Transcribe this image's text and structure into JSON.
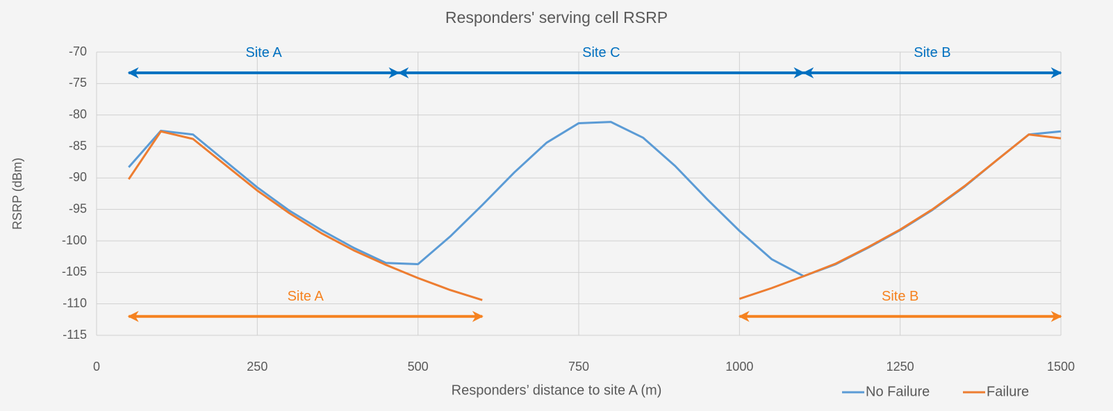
{
  "chart_data": {
    "type": "line",
    "title": "Responders' serving cell RSRP",
    "x_label": "Responders’ distance to site A (m)",
    "y_label": "RSRP (dBm)",
    "x": [
      50,
      100,
      150,
      200,
      250,
      300,
      350,
      400,
      450,
      500,
      550,
      600,
      650,
      700,
      750,
      800,
      850,
      900,
      950,
      1000,
      1050,
      1100,
      1150,
      1200,
      1250,
      1300,
      1350,
      1400,
      1450,
      1500
    ],
    "series": [
      {
        "name": "No Failure",
        "color": "#5b9bd5",
        "values": [
          -88.3,
          -82.5,
          -83.1,
          -87.3,
          -91.5,
          -95.2,
          -98.3,
          -101.1,
          -103.5,
          -103.7,
          -99.3,
          -94.3,
          -89.1,
          -84.4,
          -81.3,
          -81.1,
          -83.6,
          -88.1,
          -93.4,
          -98.4,
          -102.9,
          -105.6,
          -103.7,
          -101.1,
          -98.3,
          -95.1,
          -91.4,
          -87.2,
          -83.1,
          -82.6
        ]
      },
      {
        "name": "Failure",
        "color": "#ed7d31",
        "values": [
          -90.2,
          -82.6,
          -83.8,
          -87.9,
          -92.0,
          -95.6,
          -98.8,
          -101.5,
          -103.8,
          -105.9,
          -107.8,
          -109.4,
          null,
          null,
          null,
          null,
          null,
          null,
          null,
          -109.2,
          -107.5,
          -105.6,
          -103.6,
          -101.0,
          -98.2,
          -95.0,
          -91.3,
          -87.2,
          -83.1,
          -83.7
        ]
      }
    ],
    "annotations": [
      {
        "text": "Site A",
        "color": "#0070c0",
        "x": [
          50,
          470
        ],
        "y": -73.3
      },
      {
        "text": "Site C",
        "color": "#0070c0",
        "x": [
          470,
          1100
        ],
        "y": -73.3
      },
      {
        "text": "Site B",
        "color": "#0070c0",
        "x": [
          1100,
          1500
        ],
        "y": -73.3
      },
      {
        "text": "Site A",
        "color": "#f58220",
        "x": [
          50,
          600
        ],
        "y": -112
      },
      {
        "text": "Site B",
        "color": "#f58220",
        "x": [
          1000,
          1500
        ],
        "y": -112
      }
    ],
    "xlim": [
      0,
      1500
    ],
    "xticks": [
      0,
      250,
      500,
      750,
      1000,
      1250,
      1500
    ],
    "ylim": [
      -115,
      -70
    ],
    "yticks": [
      -70,
      -75,
      -80,
      -85,
      -90,
      -95,
      -100,
      -105,
      -110,
      -115
    ],
    "grid": true,
    "legend": "bottom-right"
  }
}
